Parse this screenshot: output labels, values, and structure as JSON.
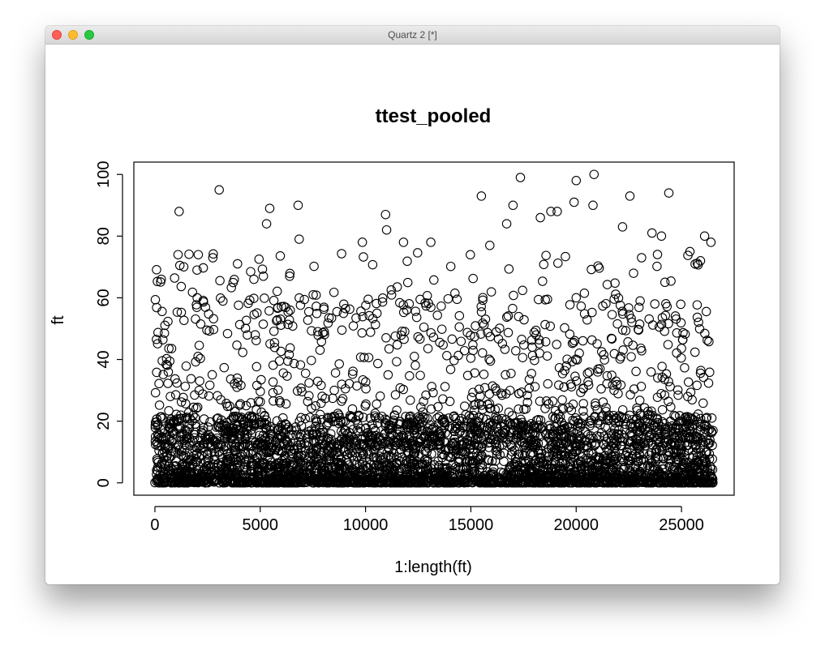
{
  "window": {
    "title": "Quartz 2 [*]",
    "buttons": [
      "close",
      "minimize",
      "zoom"
    ]
  },
  "chart_data": {
    "type": "scatter",
    "title": "ttest_pooled",
    "xlabel": "1:length(ft)",
    "ylabel": "ft",
    "xlim": [
      -1000,
      27500
    ],
    "ylim": [
      -4,
      104
    ],
    "xticks": [
      0,
      5000,
      10000,
      15000,
      20000,
      25000
    ],
    "yticks": [
      0,
      20,
      40,
      60,
      80,
      100
    ],
    "marker": "open-circle",
    "grid": false,
    "legend": "none",
    "n_points": 26500,
    "notable_points": [
      {
        "x": 1150,
        "y": 88
      },
      {
        "x": 3050,
        "y": 95
      },
      {
        "x": 5450,
        "y": 89
      },
      {
        "x": 5300,
        "y": 84
      },
      {
        "x": 6800,
        "y": 90
      },
      {
        "x": 6850,
        "y": 79
      },
      {
        "x": 1100,
        "y": 74
      },
      {
        "x": 2750,
        "y": 73
      },
      {
        "x": 2000,
        "y": 69
      },
      {
        "x": 10950,
        "y": 87
      },
      {
        "x": 11000,
        "y": 82
      },
      {
        "x": 9850,
        "y": 78
      },
      {
        "x": 11800,
        "y": 78
      },
      {
        "x": 13100,
        "y": 78
      },
      {
        "x": 15500,
        "y": 93
      },
      {
        "x": 15900,
        "y": 77
      },
      {
        "x": 16700,
        "y": 84
      },
      {
        "x": 17000,
        "y": 90
      },
      {
        "x": 17350,
        "y": 99
      },
      {
        "x": 18300,
        "y": 86
      },
      {
        "x": 18800,
        "y": 88
      },
      {
        "x": 19100,
        "y": 88
      },
      {
        "x": 19900,
        "y": 91
      },
      {
        "x": 20000,
        "y": 98
      },
      {
        "x": 20800,
        "y": 90
      },
      {
        "x": 20850,
        "y": 100
      },
      {
        "x": 22200,
        "y": 83
      },
      {
        "x": 22550,
        "y": 93
      },
      {
        "x": 23600,
        "y": 81
      },
      {
        "x": 24050,
        "y": 80
      },
      {
        "x": 24400,
        "y": 94
      },
      {
        "x": 25400,
        "y": 75
      },
      {
        "x": 25900,
        "y": 72
      },
      {
        "x": 26100,
        "y": 80
      },
      {
        "x": 26400,
        "y": 78
      },
      {
        "x": 300,
        "y": 66
      },
      {
        "x": 4700,
        "y": 66
      },
      {
        "x": 5150,
        "y": 67
      },
      {
        "x": 6400,
        "y": 67
      }
    ],
    "distribution_note": "Dense band of points between 0 and ~20 across the full index range, sparser points up to ~70, and scattered outliers up to 100."
  }
}
